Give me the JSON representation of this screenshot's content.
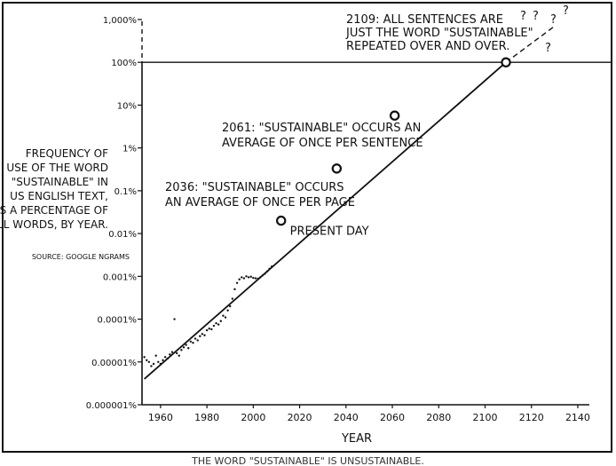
{
  "chart_data": {
    "type": "line",
    "title": "",
    "xlabel": "YEAR",
    "ylabel_lines": [
      "FREQUENCY OF",
      "USE OF THE WORD",
      "\"SUSTAINABLE\" IN",
      "US ENGLISH TEXT,",
      "AS A PERCENTAGE OF",
      "ALL WORDS, BY YEAR."
    ],
    "source": "SOURCE: GOOGLE NGRAMS",
    "xlim": [
      1952,
      2145
    ],
    "ylim_log10_percent": [
      -6,
      3
    ],
    "y_scale": "log",
    "x_ticks": [
      1960,
      1980,
      2000,
      2020,
      2040,
      2060,
      2080,
      2100,
      2120,
      2140
    ],
    "y_ticks": [
      {
        "value": 1e-06,
        "label": "0.000001%"
      },
      {
        "value": 1e-05,
        "label": "0.00001%"
      },
      {
        "value": 0.0001,
        "label": "0.0001%"
      },
      {
        "value": 0.001,
        "label": "0.001%"
      },
      {
        "value": 0.01,
        "label": "0.01%"
      },
      {
        "value": 0.1,
        "label": "0.1%"
      },
      {
        "value": 1,
        "label": "1%"
      },
      {
        "value": 10,
        "label": "10%"
      },
      {
        "value": 100,
        "label": "100%"
      },
      {
        "value": 1000,
        "label": "1,000%"
      }
    ],
    "hline_percent": 100,
    "trend": {
      "solid": [
        {
          "x": 1953,
          "y": 4e-06
        },
        {
          "x": 2109,
          "y": 100
        }
      ],
      "dashed": [
        {
          "x": 2109,
          "y": 100
        },
        {
          "x": 2130,
          "y": 700
        }
      ]
    },
    "milestones": [
      {
        "x": 2012,
        "y": 0.02,
        "label": "PRESENT DAY"
      },
      {
        "x": 2036,
        "y": 0.33,
        "label_lines": [
          "2036: \"SUSTAINABLE\" OCCURS",
          "AN AVERAGE OF ONCE PER PAGE"
        ]
      },
      {
        "x": 2061,
        "y": 5.7,
        "label_lines": [
          "2061: \"SUSTAINABLE\" OCCURS AN",
          "AVERAGE OF ONCE PER SENTENCE"
        ]
      },
      {
        "x": 2109,
        "y": 100,
        "label_lines": [
          "2109: ALL SENTENCES ARE",
          "JUST THE WORD \"SUSTAINABLE\"",
          "REPEATED OVER AND OVER."
        ]
      }
    ],
    "question_marks": [
      "?",
      "?",
      "?",
      "?",
      "?"
    ],
    "scatter": [
      {
        "x": 1953,
        "y": 1.3e-05
      },
      {
        "x": 1954,
        "y": 1.1e-05
      },
      {
        "x": 1955,
        "y": 1e-05
      },
      {
        "x": 1956,
        "y": 8e-06
      },
      {
        "x": 1957,
        "y": 9e-06
      },
      {
        "x": 1958,
        "y": 1.4e-05
      },
      {
        "x": 1959,
        "y": 1e-05
      },
      {
        "x": 1960,
        "y": 9e-06
      },
      {
        "x": 1961,
        "y": 1.1e-05
      },
      {
        "x": 1962,
        "y": 1.3e-05
      },
      {
        "x": 1963,
        "y": 1.2e-05
      },
      {
        "x": 1964,
        "y": 1.5e-05
      },
      {
        "x": 1965,
        "y": 1.7e-05
      },
      {
        "x": 1966,
        "y": 0.0001
      },
      {
        "x": 1967,
        "y": 1.6e-05
      },
      {
        "x": 1968,
        "y": 1.4e-05
      },
      {
        "x": 1969,
        "y": 1.9e-05
      },
      {
        "x": 1970,
        "y": 2.2e-05
      },
      {
        "x": 1971,
        "y": 2.5e-05
      },
      {
        "x": 1972,
        "y": 2.1e-05
      },
      {
        "x": 1973,
        "y": 3e-05
      },
      {
        "x": 1974,
        "y": 2.8e-05
      },
      {
        "x": 1975,
        "y": 3.5e-05
      },
      {
        "x": 1976,
        "y": 3.2e-05
      },
      {
        "x": 1977,
        "y": 4e-05
      },
      {
        "x": 1978,
        "y": 4.5e-05
      },
      {
        "x": 1979,
        "y": 4.2e-05
      },
      {
        "x": 1980,
        "y": 5.5e-05
      },
      {
        "x": 1981,
        "y": 6e-05
      },
      {
        "x": 1982,
        "y": 5.8e-05
      },
      {
        "x": 1983,
        "y": 7e-05
      },
      {
        "x": 1984,
        "y": 8e-05
      },
      {
        "x": 1985,
        "y": 7.5e-05
      },
      {
        "x": 1986,
        "y": 9e-05
      },
      {
        "x": 1987,
        "y": 0.00012
      },
      {
        "x": 1988,
        "y": 0.00011
      },
      {
        "x": 1989,
        "y": 0.00016
      },
      {
        "x": 1990,
        "y": 0.0002
      },
      {
        "x": 1991,
        "y": 0.0003
      },
      {
        "x": 1992,
        "y": 0.0005
      },
      {
        "x": 1993,
        "y": 0.0007
      },
      {
        "x": 1994,
        "y": 0.00085
      },
      {
        "x": 1995,
        "y": 0.00095
      },
      {
        "x": 1996,
        "y": 0.0009
      },
      {
        "x": 1997,
        "y": 0.001
      },
      {
        "x": 1998,
        "y": 0.00095
      },
      {
        "x": 1999,
        "y": 0.00098
      },
      {
        "x": 2000,
        "y": 0.00092
      },
      {
        "x": 2001,
        "y": 0.0009
      },
      {
        "x": 2002,
        "y": 0.00088
      },
      {
        "x": 2003,
        "y": 0.00095
      },
      {
        "x": 2004,
        "y": 0.00105
      },
      {
        "x": 2005,
        "y": 0.00115
      },
      {
        "x": 2006,
        "y": 0.0013
      },
      {
        "x": 2007,
        "y": 0.0015
      },
      {
        "x": 2008,
        "y": 0.0017
      }
    ]
  },
  "caption": "THE WORD \"SUSTAINABLE\" IS UNSUSTAINABLE."
}
